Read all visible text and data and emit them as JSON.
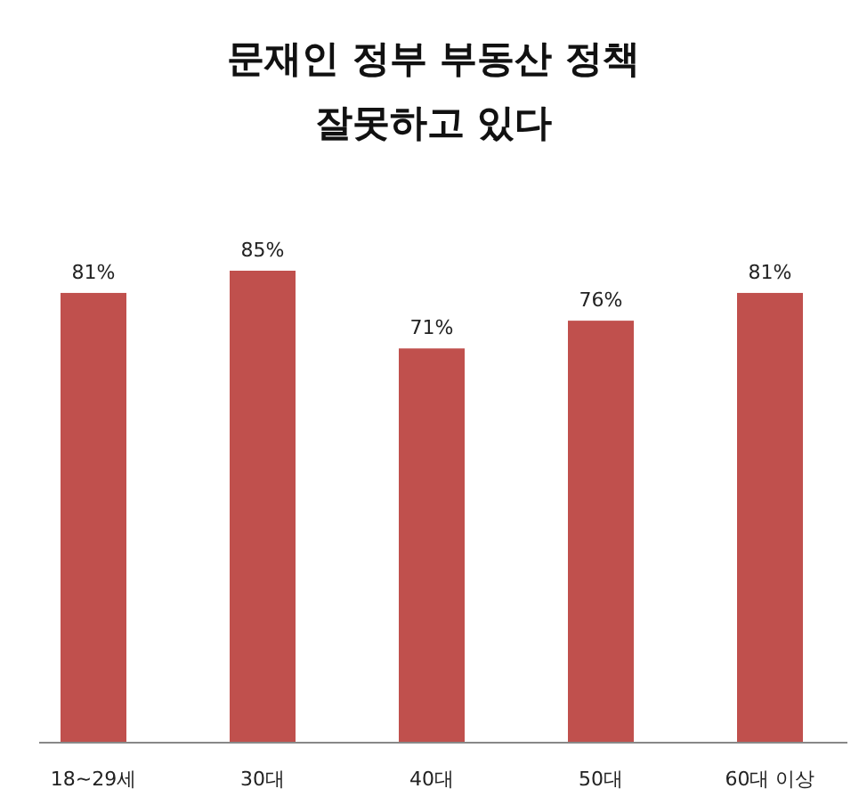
{
  "chart_data": {
    "type": "bar",
    "title": "문재인 정부 부동산 정책\n잘못하고 있다",
    "categories": [
      "18~29세",
      "30대",
      "40대",
      "50대",
      "60대 이상"
    ],
    "values": [
      81,
      85,
      71,
      76,
      81
    ],
    "value_labels": [
      "81%",
      "85%",
      "71%",
      "76%",
      "81%"
    ],
    "color": "#c0504d",
    "data_labels": false
  }
}
